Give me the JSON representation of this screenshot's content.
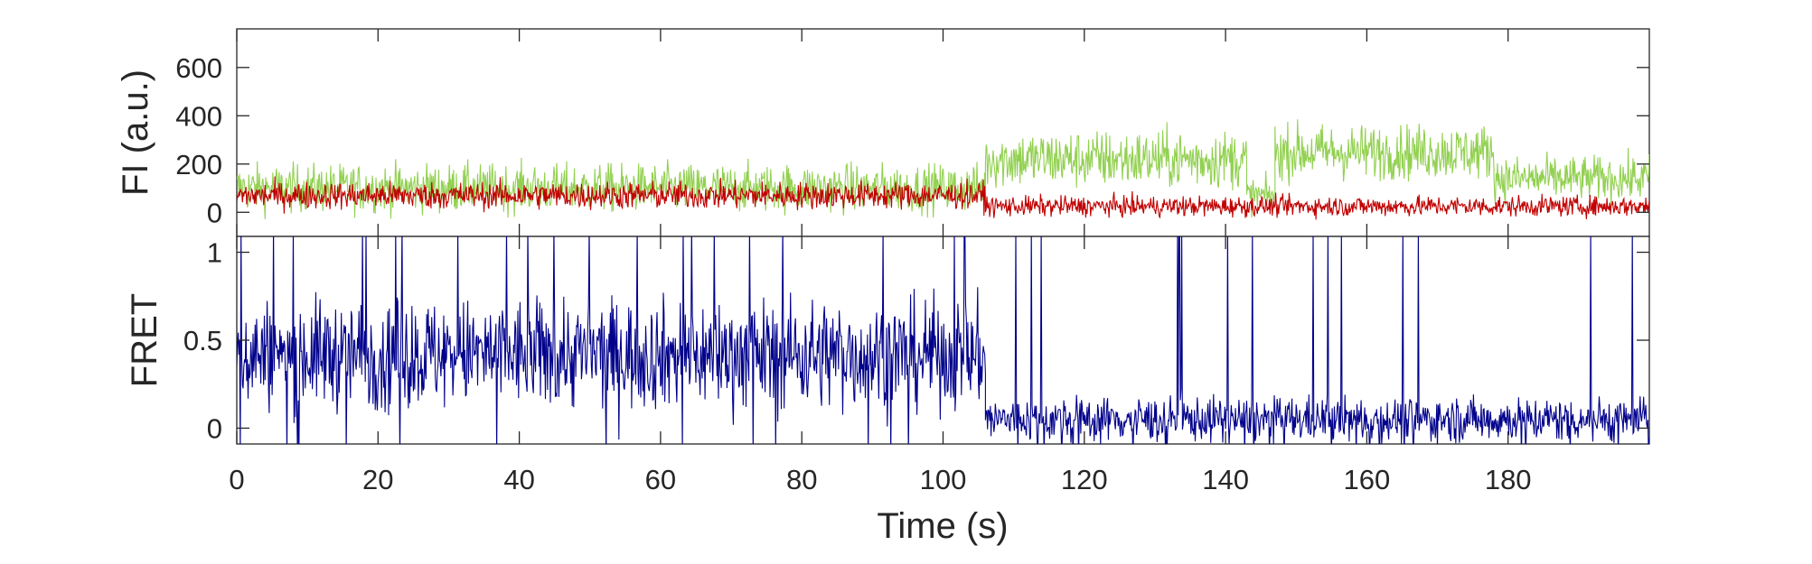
{
  "chart_data": [
    {
      "type": "line",
      "ylabel": "FI (a.u.)",
      "xlim": [
        0,
        200
      ],
      "ylim": [
        -100,
        760
      ],
      "yticks": [
        0,
        200,
        400,
        600
      ],
      "grid": false,
      "series": [
        {
          "color": "#92d050",
          "segments": [
            {
              "x": [
                0,
                106
              ],
              "mean": 100,
              "noise": 70
            },
            {
              "x": [
                106,
                143
              ],
              "mean": 220,
              "noise": 85
            },
            {
              "x": [
                143,
                147
              ],
              "mean": 70,
              "noise": 50
            },
            {
              "x": [
                147,
                178
              ],
              "mean": 250,
              "noise": 80
            },
            {
              "x": [
                178,
                200
              ],
              "mean": 140,
              "noise": 65
            }
          ]
        },
        {
          "color": "#c00000",
          "segments": [
            {
              "x": [
                0,
                106
              ],
              "mean": 70,
              "noise": 40
            },
            {
              "x": [
                106,
                200
              ],
              "mean": 25,
              "noise": 30
            }
          ]
        }
      ]
    },
    {
      "type": "line",
      "ylabel": "FRET",
      "xlabel": "Time (s)",
      "xlim": [
        0,
        200
      ],
      "ylim": [
        -0.09,
        1.09
      ],
      "yticks": [
        0,
        0.5,
        1
      ],
      "xticks": [
        0,
        20,
        40,
        60,
        80,
        100,
        120,
        140,
        160,
        180
      ],
      "grid": false,
      "series": [
        {
          "color": "#00008b",
          "segments": [
            {
              "x": [
                0,
                106
              ],
              "mean": 0.42,
              "noise": 0.22
            },
            {
              "x": [
                106,
                200
              ],
              "mean": 0.05,
              "noise": 0.09
            }
          ]
        }
      ]
    }
  ],
  "tick_labels": {
    "top_y": [
      "0",
      "200",
      "400",
      "600"
    ],
    "bottom_y": [
      "0",
      "0.5",
      "1"
    ],
    "x": [
      "0",
      "20",
      "40",
      "60",
      "80",
      "100",
      "120",
      "140",
      "160",
      "180"
    ]
  },
  "axis_titles": {
    "top_y": "FI (a.u.)",
    "bottom_y": "FRET",
    "x": "Time (s)"
  }
}
